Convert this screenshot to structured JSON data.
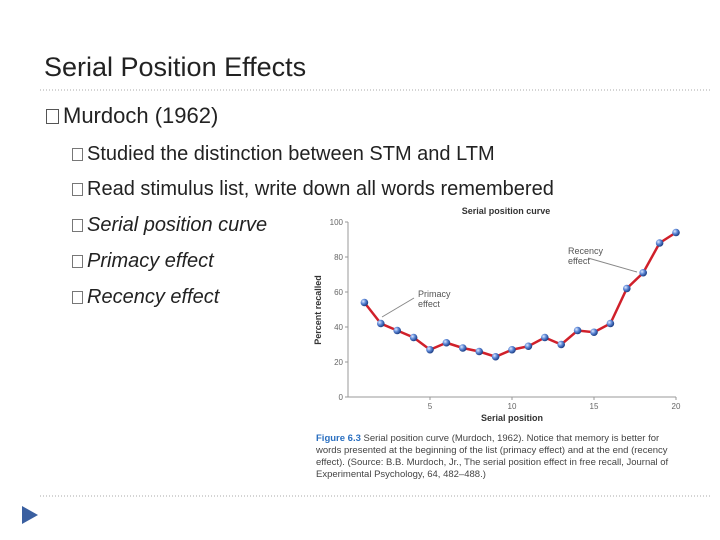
{
  "slide": {
    "title": "Serial Position Effects",
    "bullet": "Murdoch (1962)",
    "sub_bullets": [
      "Studied the distinction between STM and LTM",
      "Read stimulus list, write down all words remembered",
      "Serial position curve",
      "Primacy effect",
      "Recency effect"
    ],
    "caption_label": "Figure 6.3",
    "caption": "Serial position curve (Murdoch, 1962). Notice that memory is better for words presented at the beginning of the list (primacy effect) and at the end (recency effect). (Source: B.B. Murdoch, Jr., The serial position effect in free recall, Journal of Experimental Psychology, 64, 482–488.)"
  },
  "chart_data": {
    "type": "line",
    "title": "Serial position curve",
    "x_label": "Serial position",
    "y_label": "Percent recalled",
    "x": [
      1,
      2,
      3,
      4,
      5,
      6,
      7,
      8,
      9,
      10,
      11,
      12,
      13,
      14,
      15,
      16,
      17,
      18,
      19,
      20
    ],
    "series": [
      {
        "name": "Percent recalled",
        "color": "#d0202a",
        "values": [
          54,
          42,
          38,
          34,
          27,
          31,
          28,
          26,
          23,
          27,
          29,
          34,
          30,
          38,
          37,
          42,
          62,
          71,
          88,
          94
        ]
      }
    ],
    "xlim": [
      0,
      20
    ],
    "xticks": [
      5,
      10,
      15,
      20
    ],
    "ylim": [
      0,
      100
    ],
    "yticks": [
      0,
      20,
      40,
      60,
      80,
      100
    ],
    "annotations": [
      "Recency effect",
      "Primacy effect"
    ]
  }
}
